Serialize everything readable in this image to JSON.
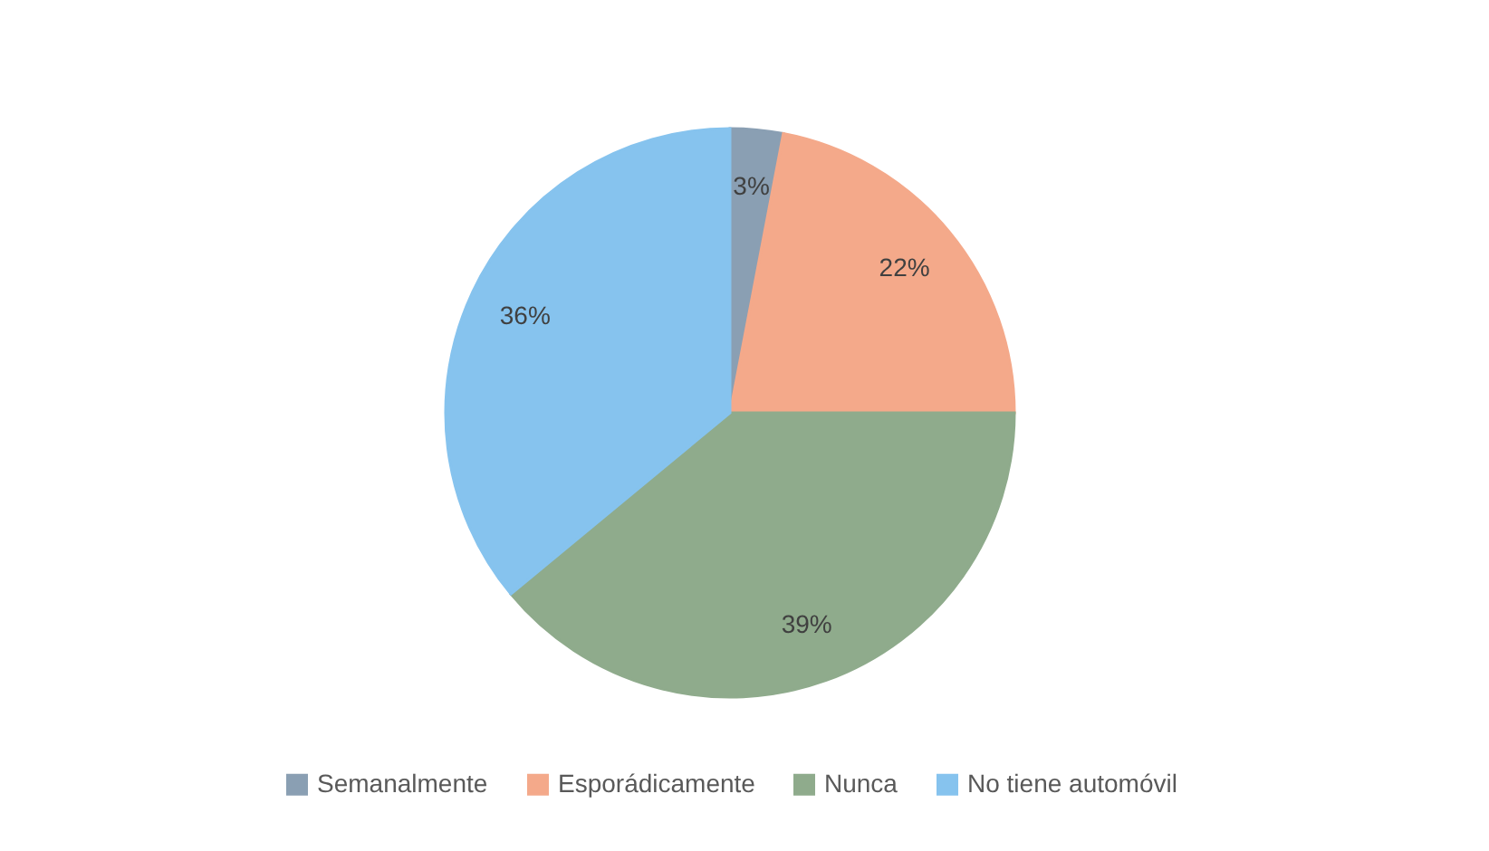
{
  "chart_data": {
    "type": "pie",
    "categories": [
      "Semanalmente",
      "Esporádicamente",
      "Nunca",
      "No tiene automóvil"
    ],
    "values": [
      3,
      22,
      39,
      36
    ],
    "colors": [
      "#8a9fb3",
      "#f4a98a",
      "#8fab8c",
      "#86c3ee"
    ],
    "value_labels": [
      "3%",
      "22%",
      "39%",
      "36%"
    ],
    "legend": "bottom"
  }
}
